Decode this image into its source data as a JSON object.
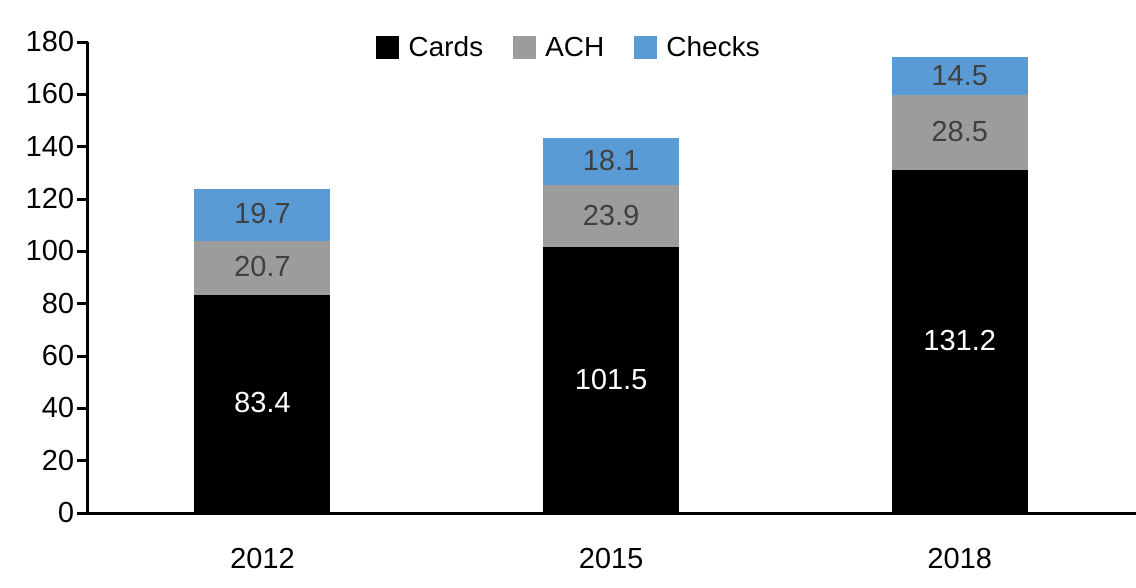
{
  "chart_data": {
    "type": "bar",
    "stacked": true,
    "title": "",
    "xlabel": "",
    "ylabel": "",
    "categories": [
      "2012",
      "2015",
      "2018"
    ],
    "series": [
      {
        "name": "Cards",
        "color": "#000000",
        "label_color": "#ffffff",
        "values": [
          83.4,
          101.5,
          131.2
        ],
        "labels": [
          "83.4",
          "101.5",
          "131.2"
        ]
      },
      {
        "name": "ACH",
        "color": "#9c9c9c",
        "label_color": "#404040",
        "values": [
          20.7,
          23.9,
          28.5
        ],
        "labels": [
          "20.7",
          "23.9",
          "28.5"
        ]
      },
      {
        "name": "Checks",
        "color": "#5b9bd5",
        "label_color": "#404040",
        "values": [
          19.7,
          18.1,
          14.5
        ],
        "labels": [
          "19.7",
          "18.1",
          "14.5"
        ]
      }
    ],
    "y_ticks": [
      "0",
      "20",
      "40",
      "60",
      "80",
      "100",
      "120",
      "140",
      "160",
      "180"
    ],
    "ylim": [
      0,
      180
    ],
    "grid": false,
    "legend_position": "top",
    "axis_color": "#000000"
  }
}
